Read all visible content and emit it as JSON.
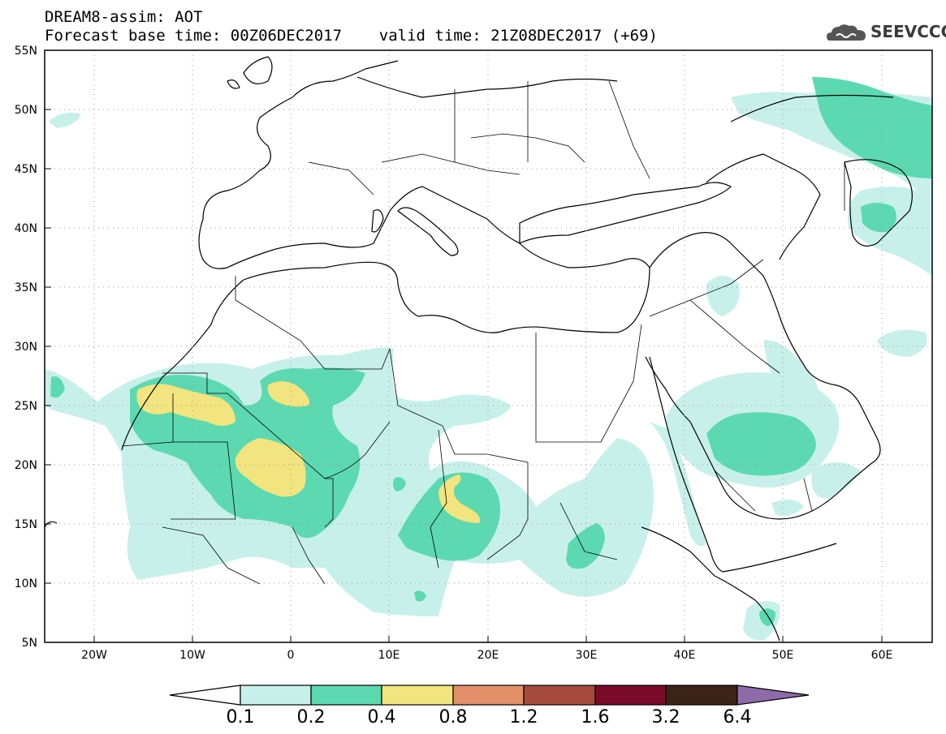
{
  "header": {
    "title_line1": "DREAM8-assim: AOT",
    "title_line2": "Forecast base time: 00Z06DEC2017    valid time: 21Z08DEC2017 (+69)",
    "logo_text": "SEEVCCC"
  },
  "map": {
    "lon_range": [
      -25,
      65
    ],
    "lat_range": [
      5,
      55
    ],
    "lon_ticks": [
      "20W",
      "10W",
      "0",
      "10E",
      "20E",
      "30E",
      "40E",
      "50E",
      "60E"
    ],
    "lat_ticks": [
      "55N",
      "50N",
      "45N",
      "40N",
      "35N",
      "30N",
      "25N",
      "20N",
      "15N",
      "10N",
      "5N"
    ],
    "gridlines": "dotted"
  },
  "colorbar": {
    "levels": [
      "0.1",
      "0.2",
      "0.4",
      "0.8",
      "1.2",
      "1.6",
      "3.2",
      "6.4"
    ],
    "colors": [
      "#ffffff",
      "#c8f0ea",
      "#5cd9b0",
      "#f2e47e",
      "#e3906a",
      "#a64a3c",
      "#7a0c2a",
      "#3b2316",
      "#8e6aa8"
    ]
  }
}
